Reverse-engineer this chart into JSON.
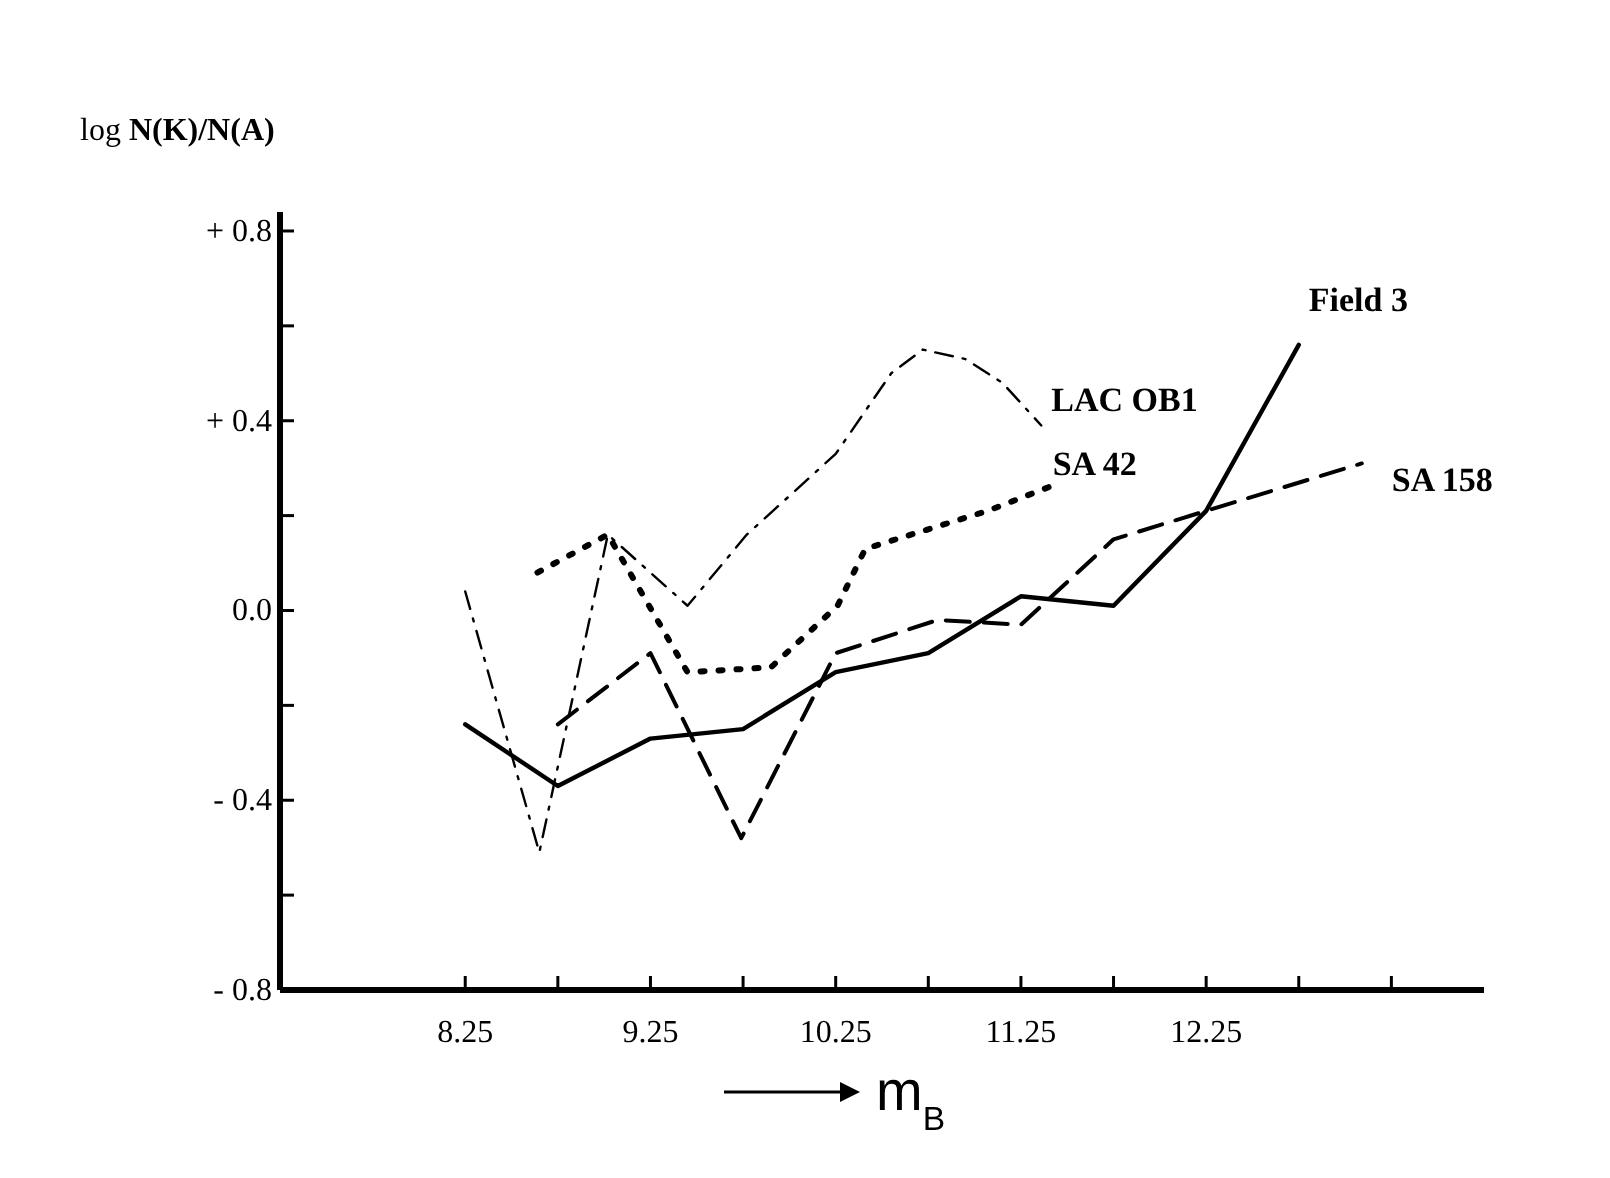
{
  "chart_data": {
    "type": "line",
    "xlabel": "m$_{B}$",
    "ylabel": "log N(K)/N(A)",
    "xlim": [
      7.25,
      13.75
    ],
    "ylim": [
      -0.8,
      0.84
    ],
    "xticks": [
      8.25,
      {
        "value": 8.75,
        "label": null
      },
      9.25,
      {
        "value": 9.75,
        "label": null
      },
      10.25,
      {
        "value": 10.75,
        "label": null
      },
      11.25,
      {
        "value": 11.75,
        "label": null
      },
      12.25,
      {
        "value": 12.75,
        "label": null
      },
      {
        "value": 13.25,
        "label": null
      }
    ],
    "yticks": [
      {
        "value": -0.8,
        "label": "- 0.8"
      },
      {
        "value": -0.6,
        "label": null
      },
      {
        "value": -0.4,
        "label": "- 0.4"
      },
      {
        "value": -0.2,
        "label": null
      },
      {
        "value": 0,
        "label": "0.0"
      },
      {
        "value": 0.2,
        "label": null
      },
      {
        "value": 0.4,
        "label": "+ 0.4"
      },
      {
        "value": 0.6,
        "label": null
      },
      {
        "value": 0.8,
        "label": "+ 0.8"
      }
    ],
    "grid": false,
    "legend": false,
    "marker": "none",
    "series": [
      {
        "name": "Field 3",
        "color": "#000000",
        "line_style": "solid",
        "x": [
          8.25,
          8.75,
          9.25,
          9.75,
          10.25,
          10.75,
          11.25,
          11.75,
          12.25,
          12.75
        ],
        "values": [
          -0.24,
          -0.37,
          -0.27,
          -0.25,
          -0.13,
          -0.09,
          0.03,
          0.01,
          0.21,
          0.56
        ]
      },
      {
        "name": "LAC OB1",
        "color": "#000000",
        "line_style": "dashdot",
        "x": [
          8.25,
          8.65,
          9.02,
          9.45,
          9.77,
          10.25,
          10.55,
          10.72,
          10.95,
          11.15,
          11.36
        ],
        "values": [
          0.04,
          -0.51,
          0.16,
          0.01,
          0.16,
          0.33,
          0.5,
          0.55,
          0.53,
          0.48,
          0.39
        ]
      },
      {
        "name": "SA 42",
        "color": "#000000",
        "line_style": "dotted",
        "x": [
          8.64,
          9.02,
          9.45,
          9.9,
          10.26,
          10.41,
          11.07,
          11.4
        ],
        "values": [
          0.08,
          0.16,
          -0.13,
          -0.12,
          0.01,
          0.13,
          0.21,
          0.26
        ]
      },
      {
        "name": "SA 158",
        "color": "#000000",
        "line_style": "dashed",
        "x": [
          8.75,
          9.25,
          9.74,
          10.25,
          10.8,
          11.25,
          11.75,
          12.25,
          13.09
        ],
        "values": [
          -0.24,
          -0.09,
          -0.48,
          -0.09,
          -0.02,
          -0.03,
          0.15,
          0.21,
          0.31
        ]
      }
    ]
  }
}
